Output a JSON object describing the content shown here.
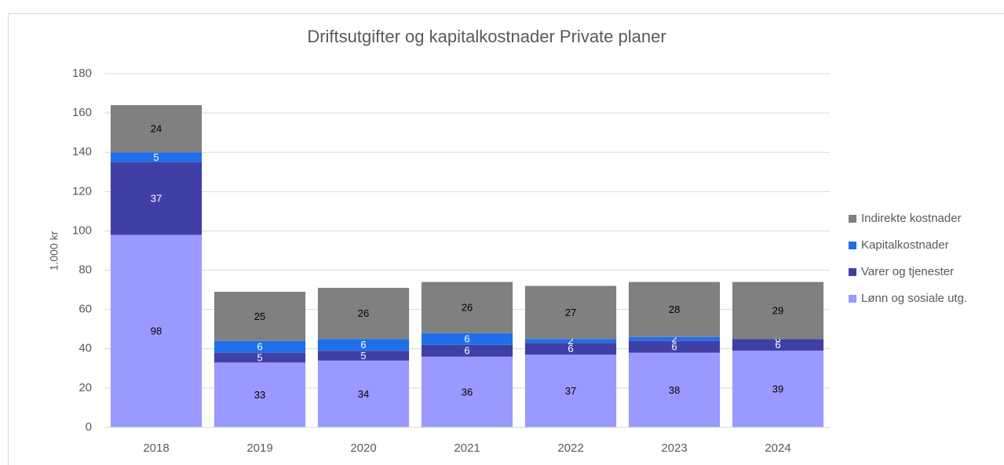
{
  "chart_data": {
    "type": "stacked_bar",
    "title": "Driftsutgifter og kapitalkostnader Private planer",
    "y_label": "1.000 kr",
    "categories": [
      "2018",
      "2019",
      "2020",
      "2021",
      "2022",
      "2023",
      "2024"
    ],
    "series": [
      {
        "name": "Lønn og sosiale utg.",
        "color": "#9999ff",
        "values": [
          98,
          33,
          34,
          36,
          37,
          38,
          39
        ]
      },
      {
        "name": "Varer og tjenester",
        "color": "#3f3fa6",
        "values": [
          37,
          5,
          5,
          6,
          6,
          6,
          6
        ]
      },
      {
        "name": "Kapitalkostnader",
        "color": "#1f6fe8",
        "values": [
          5,
          6,
          6,
          6,
          2,
          2,
          0
        ]
      },
      {
        "name": "Indirekte kostnader",
        "color": "#808080",
        "values": [
          24,
          25,
          26,
          26,
          27,
          28,
          29
        ]
      }
    ],
    "ylim": [
      0,
      180
    ],
    "yticks": [
      0,
      20,
      40,
      60,
      80,
      100,
      120,
      140,
      160,
      180
    ],
    "grid": true,
    "legend": "right"
  }
}
